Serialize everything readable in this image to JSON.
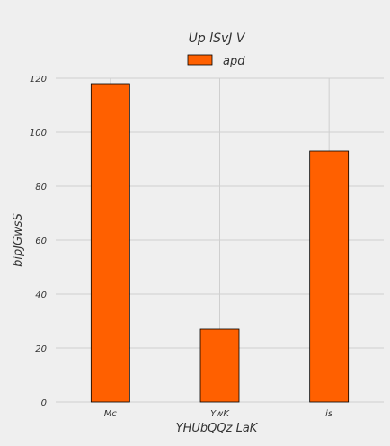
{
  "chart_data": {
    "type": "bar",
    "title": "Up  lSvJ V",
    "xlabel": "YHUbQQz LaK",
    "ylabel": "bipJGwsS",
    "categories": [
      "Mc",
      "YwK",
      "is"
    ],
    "series": [
      {
        "name": "apd",
        "values": [
          118,
          27,
          93
        ],
        "color": "#ff6000"
      }
    ],
    "ylim": [
      0,
      120
    ],
    "yticks": [
      0,
      20,
      40,
      60,
      80,
      100,
      120
    ],
    "grid": true,
    "legend_position": "top-center"
  }
}
